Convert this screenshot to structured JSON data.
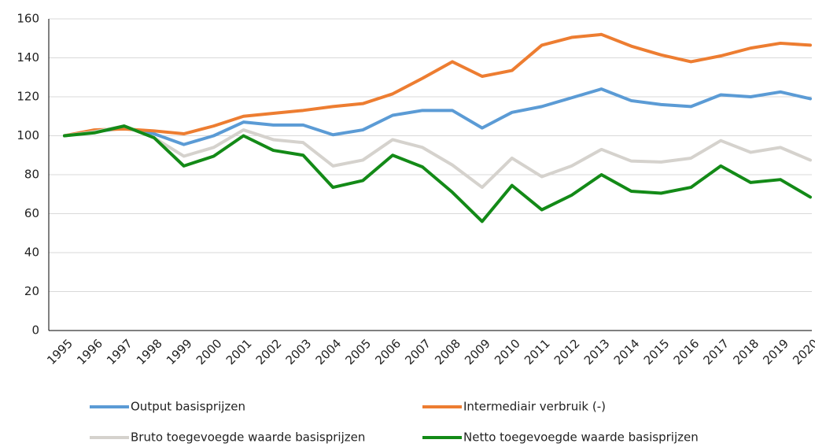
{
  "chart_data": {
    "type": "line",
    "categories": [
      "1995",
      "1996",
      "1997",
      "1998",
      "1999",
      "2000",
      "2001",
      "2002",
      "2003",
      "2004",
      "2005",
      "2006",
      "2007",
      "2008",
      "2009",
      "2010",
      "2011",
      "2012",
      "2013",
      "2014",
      "2015",
      "2016",
      "2017",
      "2018",
      "2019",
      "2020"
    ],
    "series": [
      {
        "name": "Output basisprijzen",
        "color": "#5b9bd5",
        "values": [
          100,
          102,
          104,
          101,
          95.5,
          100,
          107,
          105.5,
          105.5,
          100.5,
          103,
          110.5,
          113,
          113,
          104,
          112,
          115,
          119.5,
          124,
          118,
          116,
          115,
          121,
          120,
          122.5,
          119
        ]
      },
      {
        "name": "Intermediair verbruik (-)",
        "color": "#ed7d31",
        "values": [
          100,
          103,
          103.5,
          102.5,
          101,
          105,
          110,
          111.5,
          113,
          115,
          116.5,
          121.5,
          129.5,
          138,
          130.5,
          133.5,
          146.5,
          150.5,
          152,
          146,
          141.5,
          138,
          141,
          145,
          147.5,
          146.5
        ]
      },
      {
        "name": "Bruto toegevoegde waarde basisprijzen",
        "color": "#d5d2cd",
        "values": [
          100,
          102,
          105,
          99,
          89.5,
          94,
          103,
          98,
          96.5,
          84.5,
          87.5,
          98,
          94,
          85,
          73.5,
          88.5,
          79,
          84.5,
          93,
          87,
          86.5,
          88.5,
          97.5,
          91.5,
          94,
          87.5
        ]
      },
      {
        "name": "Netto toegevoegde waarde basisprijzen",
        "color": "#138a17",
        "values": [
          100,
          101.5,
          105,
          99,
          84.5,
          89.5,
          100,
          92.5,
          90,
          73.5,
          77,
          90,
          84,
          71,
          56,
          74.5,
          62,
          69.5,
          80,
          71.5,
          70.5,
          73.5,
          84.5,
          76,
          77.5,
          68.5
        ]
      }
    ],
    "ylim": [
      0,
      160
    ],
    "yticks": [
      0,
      20,
      40,
      60,
      80,
      100,
      120,
      140,
      160
    ],
    "grid": true
  }
}
